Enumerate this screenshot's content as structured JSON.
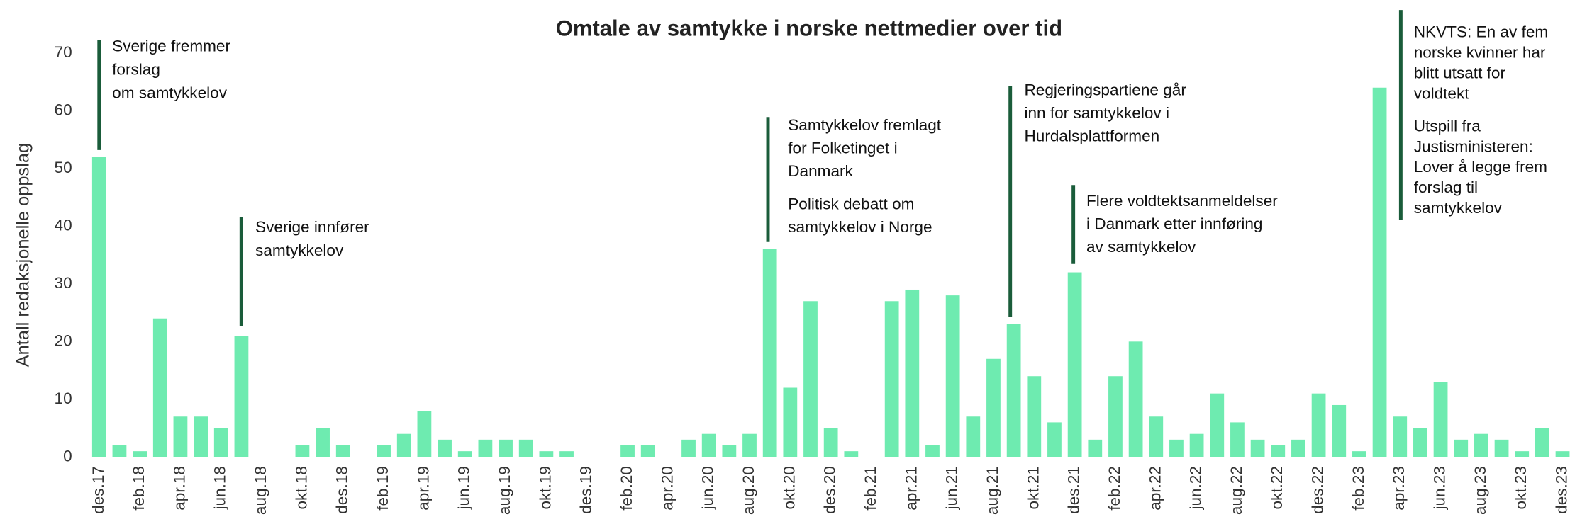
{
  "chart_data": {
    "type": "bar",
    "title": "Omtale av samtykke i norske nettmedier over tid",
    "y_label": "Antall redaksjonelle oppslag",
    "color": "#6eebb0",
    "ylim": [
      0,
      70
    ],
    "yticks": [
      0,
      10,
      20,
      30,
      40,
      50,
      60,
      70
    ],
    "categories": [
      "des.17",
      null,
      "feb.18",
      null,
      "apr.18",
      null,
      "jun.18",
      null,
      "aug.18",
      null,
      "okt.18",
      null,
      "des.18",
      null,
      "feb.19",
      null,
      "apr.19",
      null,
      "jun.19",
      null,
      "aug.19",
      null,
      "okt.19",
      null,
      "des.19",
      null,
      "feb.20",
      null,
      "apr.20",
      null,
      "jun.20",
      null,
      "aug.20",
      null,
      "okt.20",
      null,
      "des.20",
      null,
      "feb.21",
      null,
      "apr.21",
      null,
      "jun.21",
      null,
      "aug.21",
      null,
      "okt.21",
      null,
      "des.21",
      null,
      "feb.22",
      null,
      "apr.22",
      null,
      "jun.22",
      null,
      "aug.22",
      null,
      "okt.22",
      null,
      "des.22",
      null,
      "feb.23",
      null,
      "apr.23",
      null,
      "jun.23",
      null,
      "aug.23",
      null,
      "okt.23",
      null,
      "des.23"
    ],
    "values": [
      52,
      2,
      1,
      24,
      7,
      7,
      5,
      21,
      0,
      0,
      2,
      5,
      2,
      0,
      2,
      4,
      8,
      3,
      1,
      3,
      3,
      3,
      1,
      1,
      0,
      0,
      2,
      2,
      0,
      3,
      4,
      2,
      4,
      36,
      12,
      27,
      5,
      1,
      0,
      27,
      29,
      2,
      28,
      7,
      17,
      23,
      14,
      6,
      32,
      3,
      14,
      20,
      7,
      3,
      4,
      11,
      6,
      3,
      2,
      3,
      11,
      9,
      1,
      64,
      7,
      5,
      13,
      3,
      4,
      3,
      1,
      5,
      1
    ],
    "annotations": [
      {
        "blocks": [
          [
            "Sverige fremmer",
            "forslag",
            "om samtykkelov"
          ]
        ]
      },
      {
        "blocks": [
          [
            "Sverige innfører",
            "samtykkelov"
          ]
        ]
      },
      {
        "blocks": [
          [
            "Samtykkelov fremlagt",
            "for Folketinget i",
            "Danmark"
          ],
          [
            "Politisk debatt om",
            "samtykkelov i Norge"
          ]
        ]
      },
      {
        "blocks": [
          [
            "Regjeringspartiene går",
            "inn for samtykkelov i",
            "Hurdalsplattformen"
          ]
        ]
      },
      {
        "blocks": [
          [
            "Flere voldtektsanmeldelser",
            "i Danmark etter innføring",
            "av samtykkelov"
          ]
        ]
      },
      {
        "blocks": [
          [
            "NKVTS: En av fem",
            "norske kvinner har",
            "blitt utsatt for",
            "voldtekt"
          ],
          [
            "Utspill fra",
            "Justisministeren:",
            "Lover å legge frem",
            "forslag til",
            "samtykkelov"
          ]
        ]
      }
    ]
  }
}
